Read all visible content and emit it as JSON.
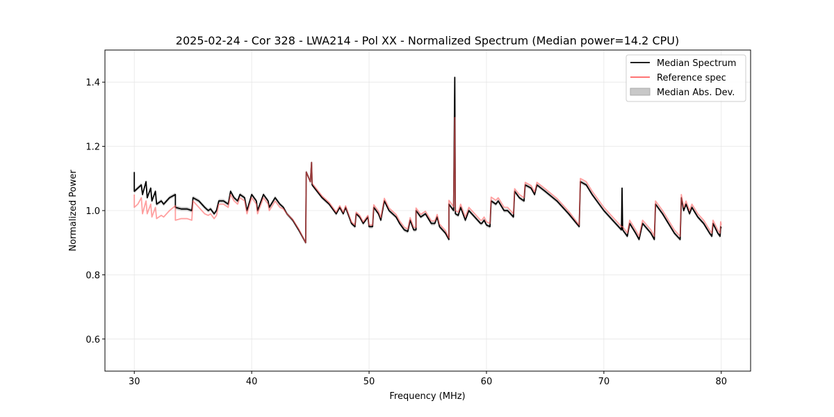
{
  "chart_data": {
    "type": "line",
    "title": "2025-02-24 - Cor 328 - LWA214 - Pol XX - Normalized Spectrum (Median power=14.2 CPU)",
    "xlabel": "Frequency (MHz)",
    "ylabel": "Normalized Power",
    "xlim": [
      27.5,
      82.5
    ],
    "ylim": [
      0.5,
      1.5
    ],
    "xticks": [
      30,
      40,
      50,
      60,
      70,
      80
    ],
    "yticks": [
      0.6,
      0.8,
      1.0,
      1.2,
      1.4
    ],
    "ytick_labels": [
      "0.6",
      "0.8",
      "1.0",
      "1.2",
      "1.4"
    ],
    "grid": true,
    "legend_position": "top-right",
    "legend": [
      "Median Spectrum",
      "Reference spec",
      "Median Abs. Dev."
    ],
    "colors": {
      "median": "#000000",
      "reference": "#ff6060",
      "overlap": "#8b0000",
      "mad": "#c8c8c8"
    },
    "mad_approx": 0.006,
    "series": [
      {
        "name": "Median Spectrum",
        "points": [
          [
            30.0,
            1.12
          ],
          [
            30.0,
            1.06
          ],
          [
            30.3,
            1.07
          ],
          [
            30.6,
            1.08
          ],
          [
            30.7,
            1.05
          ],
          [
            31.0,
            1.09
          ],
          [
            31.1,
            1.04
          ],
          [
            31.4,
            1.07
          ],
          [
            31.5,
            1.03
          ],
          [
            31.8,
            1.06
          ],
          [
            31.9,
            1.02
          ],
          [
            32.3,
            1.03
          ],
          [
            32.5,
            1.02
          ],
          [
            33.0,
            1.04
          ],
          [
            33.5,
            1.05
          ],
          [
            33.5,
            1.01
          ],
          [
            34.0,
            1.005
          ],
          [
            34.5,
            1.005
          ],
          [
            34.9,
            1.0
          ],
          [
            35.0,
            1.04
          ],
          [
            35.5,
            1.03
          ],
          [
            36.0,
            1.01
          ],
          [
            36.3,
            1.0
          ],
          [
            36.5,
            1.005
          ],
          [
            36.8,
            0.99
          ],
          [
            37.0,
            1.0
          ],
          [
            37.2,
            1.03
          ],
          [
            37.6,
            1.03
          ],
          [
            38.0,
            1.02
          ],
          [
            38.2,
            1.06
          ],
          [
            38.5,
            1.04
          ],
          [
            38.8,
            1.03
          ],
          [
            39.0,
            1.05
          ],
          [
            39.4,
            1.04
          ],
          [
            39.6,
            1.0
          ],
          [
            40.0,
            1.05
          ],
          [
            40.4,
            1.03
          ],
          [
            40.5,
            1.0
          ],
          [
            41.0,
            1.05
          ],
          [
            41.4,
            1.03
          ],
          [
            41.5,
            1.01
          ],
          [
            42.0,
            1.04
          ],
          [
            42.4,
            1.02
          ],
          [
            42.7,
            1.01
          ],
          [
            43.0,
            0.99
          ],
          [
            43.5,
            0.97
          ],
          [
            44.0,
            0.94
          ],
          [
            44.6,
            0.9
          ],
          [
            44.65,
            1.12
          ],
          [
            45.0,
            1.09
          ],
          [
            45.1,
            1.15
          ],
          [
            45.15,
            1.08
          ],
          [
            46.0,
            1.04
          ],
          [
            46.6,
            1.02
          ],
          [
            47.0,
            1.0
          ],
          [
            47.2,
            0.99
          ],
          [
            47.5,
            1.01
          ],
          [
            47.8,
            0.99
          ],
          [
            48.0,
            1.01
          ],
          [
            48.5,
            0.96
          ],
          [
            48.8,
            0.95
          ],
          [
            48.9,
            0.99
          ],
          [
            49.2,
            0.98
          ],
          [
            49.5,
            0.96
          ],
          [
            49.9,
            0.98
          ],
          [
            50.0,
            0.95
          ],
          [
            50.3,
            0.95
          ],
          [
            50.4,
            1.01
          ],
          [
            50.8,
            0.99
          ],
          [
            51.0,
            0.97
          ],
          [
            51.3,
            1.03
          ],
          [
            51.7,
            1.0
          ],
          [
            52.3,
            0.98
          ],
          [
            52.6,
            0.96
          ],
          [
            53.0,
            0.94
          ],
          [
            53.3,
            0.935
          ],
          [
            53.5,
            0.97
          ],
          [
            53.8,
            0.94
          ],
          [
            54.0,
            0.94
          ],
          [
            54.0,
            1.0
          ],
          [
            54.4,
            0.98
          ],
          [
            54.8,
            0.99
          ],
          [
            55.3,
            0.96
          ],
          [
            55.6,
            0.96
          ],
          [
            55.8,
            0.98
          ],
          [
            56.0,
            0.95
          ],
          [
            56.5,
            0.93
          ],
          [
            56.8,
            0.91
          ],
          [
            56.8,
            1.02
          ],
          [
            57.2,
            1.0
          ],
          [
            57.3,
            1.415
          ],
          [
            57.35,
            0.99
          ],
          [
            57.6,
            0.985
          ],
          [
            57.8,
            1.01
          ],
          [
            58.2,
            0.97
          ],
          [
            58.5,
            1.0
          ],
          [
            59.0,
            0.98
          ],
          [
            59.5,
            0.96
          ],
          [
            59.6,
            0.96
          ],
          [
            59.8,
            0.97
          ],
          [
            60.0,
            0.955
          ],
          [
            60.3,
            0.95
          ],
          [
            60.4,
            1.03
          ],
          [
            60.8,
            1.02
          ],
          [
            61.0,
            1.03
          ],
          [
            61.5,
            1.0
          ],
          [
            61.8,
            1.0
          ],
          [
            62.3,
            0.98
          ],
          [
            62.4,
            1.06
          ],
          [
            62.8,
            1.04
          ],
          [
            63.2,
            1.03
          ],
          [
            63.3,
            1.08
          ],
          [
            63.8,
            1.07
          ],
          [
            64.1,
            1.05
          ],
          [
            64.3,
            1.08
          ],
          [
            65.0,
            1.06
          ],
          [
            66.0,
            1.03
          ],
          [
            67.0,
            0.99
          ],
          [
            67.9,
            0.95
          ],
          [
            68.0,
            1.09
          ],
          [
            68.5,
            1.08
          ],
          [
            69.0,
            1.05
          ],
          [
            70.0,
            1.0
          ],
          [
            71.0,
            0.96
          ],
          [
            71.5,
            0.94
          ],
          [
            71.55,
            1.07
          ],
          [
            71.6,
            0.94
          ],
          [
            72.0,
            0.92
          ],
          [
            72.2,
            0.96
          ],
          [
            72.7,
            0.93
          ],
          [
            73.0,
            0.91
          ],
          [
            73.3,
            0.96
          ],
          [
            74.0,
            0.93
          ],
          [
            74.3,
            0.91
          ],
          [
            74.4,
            1.02
          ],
          [
            75.0,
            0.99
          ],
          [
            75.5,
            0.96
          ],
          [
            76.0,
            0.93
          ],
          [
            76.5,
            0.91
          ],
          [
            76.6,
            1.04
          ],
          [
            76.8,
            1.0
          ],
          [
            77.0,
            1.02
          ],
          [
            77.3,
            0.99
          ],
          [
            77.5,
            1.01
          ],
          [
            78.0,
            0.98
          ],
          [
            78.5,
            0.96
          ],
          [
            79.0,
            0.93
          ],
          [
            79.2,
            0.92
          ],
          [
            79.3,
            0.96
          ],
          [
            79.7,
            0.93
          ],
          [
            79.9,
            0.92
          ],
          [
            79.95,
            0.95
          ],
          [
            80.0,
            0.945
          ]
        ]
      },
      {
        "name": "Reference spec",
        "points": [
          [
            30.0,
            1.05
          ],
          [
            30.0,
            1.01
          ],
          [
            30.3,
            1.02
          ],
          [
            30.6,
            1.04
          ],
          [
            30.7,
            0.99
          ],
          [
            31.0,
            1.03
          ],
          [
            31.1,
            0.99
          ],
          [
            31.4,
            1.02
          ],
          [
            31.5,
            0.98
          ],
          [
            31.8,
            1.01
          ],
          [
            31.9,
            0.975
          ],
          [
            32.3,
            0.985
          ],
          [
            32.5,
            0.98
          ],
          [
            33.0,
            1.0
          ],
          [
            33.5,
            1.015
          ],
          [
            33.5,
            0.97
          ],
          [
            34.0,
            0.975
          ],
          [
            34.5,
            0.975
          ],
          [
            34.9,
            0.97
          ],
          [
            35.0,
            1.03
          ],
          [
            35.5,
            1.01
          ],
          [
            36.0,
            0.99
          ],
          [
            36.3,
            0.985
          ],
          [
            36.5,
            0.99
          ],
          [
            36.8,
            0.975
          ],
          [
            37.0,
            0.985
          ],
          [
            37.2,
            1.02
          ],
          [
            37.6,
            1.02
          ],
          [
            38.0,
            1.01
          ],
          [
            38.2,
            1.05
          ],
          [
            38.5,
            1.03
          ],
          [
            38.8,
            1.02
          ],
          [
            39.0,
            1.04
          ],
          [
            39.4,
            1.03
          ],
          [
            39.6,
            0.99
          ],
          [
            40.0,
            1.04
          ],
          [
            40.4,
            1.02
          ],
          [
            40.5,
            0.99
          ],
          [
            41.0,
            1.04
          ],
          [
            41.4,
            1.02
          ],
          [
            41.5,
            1.0
          ],
          [
            42.0,
            1.03
          ],
          [
            42.4,
            1.01
          ],
          [
            42.7,
            1.005
          ],
          [
            43.0,
            0.99
          ],
          [
            43.5,
            0.972
          ],
          [
            44.0,
            0.943
          ],
          [
            44.6,
            0.9
          ],
          [
            44.65,
            1.12
          ],
          [
            45.0,
            1.09
          ],
          [
            45.1,
            1.15
          ],
          [
            45.15,
            1.085
          ],
          [
            46.0,
            1.045
          ],
          [
            46.6,
            1.025
          ],
          [
            47.0,
            1.005
          ],
          [
            47.2,
            0.995
          ],
          [
            47.5,
            1.015
          ],
          [
            47.8,
            0.995
          ],
          [
            48.0,
            1.015
          ],
          [
            48.5,
            0.965
          ],
          [
            48.8,
            0.955
          ],
          [
            48.9,
            0.995
          ],
          [
            49.2,
            0.985
          ],
          [
            49.5,
            0.965
          ],
          [
            49.9,
            0.985
          ],
          [
            50.0,
            0.955
          ],
          [
            50.3,
            0.955
          ],
          [
            50.4,
            1.018
          ],
          [
            50.8,
            0.998
          ],
          [
            51.0,
            0.978
          ],
          [
            51.3,
            1.038
          ],
          [
            51.7,
            1.008
          ],
          [
            52.3,
            0.988
          ],
          [
            52.6,
            0.968
          ],
          [
            53.0,
            0.948
          ],
          [
            53.3,
            0.943
          ],
          [
            53.5,
            0.978
          ],
          [
            53.8,
            0.948
          ],
          [
            54.0,
            0.948
          ],
          [
            54.0,
            1.008
          ],
          [
            54.4,
            0.988
          ],
          [
            54.8,
            0.998
          ],
          [
            55.3,
            0.968
          ],
          [
            55.6,
            0.968
          ],
          [
            55.8,
            0.988
          ],
          [
            56.0,
            0.958
          ],
          [
            56.5,
            0.938
          ],
          [
            56.8,
            0.915
          ],
          [
            56.8,
            1.032
          ],
          [
            57.2,
            1.012
          ],
          [
            57.3,
            1.29
          ],
          [
            57.35,
            1.0
          ],
          [
            57.6,
            0.995
          ],
          [
            57.8,
            1.02
          ],
          [
            58.2,
            0.98
          ],
          [
            58.5,
            1.01
          ],
          [
            59.0,
            0.99
          ],
          [
            59.5,
            0.97
          ],
          [
            59.6,
            0.97
          ],
          [
            59.8,
            0.98
          ],
          [
            60.0,
            0.965
          ],
          [
            60.3,
            0.96
          ],
          [
            60.4,
            1.042
          ],
          [
            60.8,
            1.032
          ],
          [
            61.0,
            1.04
          ],
          [
            61.5,
            1.01
          ],
          [
            61.8,
            1.01
          ],
          [
            62.3,
            0.99
          ],
          [
            62.4,
            1.068
          ],
          [
            62.8,
            1.05
          ],
          [
            63.2,
            1.04
          ],
          [
            63.3,
            1.088
          ],
          [
            63.8,
            1.078
          ],
          [
            64.1,
            1.058
          ],
          [
            64.3,
            1.088
          ],
          [
            65.0,
            1.068
          ],
          [
            66.0,
            1.038
          ],
          [
            67.0,
            0.998
          ],
          [
            67.9,
            0.955
          ],
          [
            68.0,
            1.1
          ],
          [
            68.5,
            1.09
          ],
          [
            69.0,
            1.06
          ],
          [
            70.0,
            1.01
          ],
          [
            71.0,
            0.97
          ],
          [
            71.5,
            0.95
          ],
          [
            71.6,
            0.95
          ],
          [
            72.0,
            0.93
          ],
          [
            72.2,
            0.97
          ],
          [
            72.7,
            0.94
          ],
          [
            73.0,
            0.92
          ],
          [
            73.3,
            0.97
          ],
          [
            74.0,
            0.94
          ],
          [
            74.3,
            0.92
          ],
          [
            74.4,
            1.03
          ],
          [
            75.0,
            1.0
          ],
          [
            75.5,
            0.97
          ],
          [
            76.0,
            0.94
          ],
          [
            76.5,
            0.92
          ],
          [
            76.6,
            1.05
          ],
          [
            76.8,
            1.01
          ],
          [
            77.0,
            1.03
          ],
          [
            77.3,
            1.0
          ],
          [
            77.5,
            1.02
          ],
          [
            78.0,
            0.99
          ],
          [
            78.5,
            0.97
          ],
          [
            79.0,
            0.94
          ],
          [
            79.2,
            0.93
          ],
          [
            79.3,
            0.97
          ],
          [
            79.7,
            0.94
          ],
          [
            79.9,
            0.93
          ],
          [
            79.95,
            0.965
          ],
          [
            80.0,
            0.955
          ]
        ]
      }
    ]
  }
}
